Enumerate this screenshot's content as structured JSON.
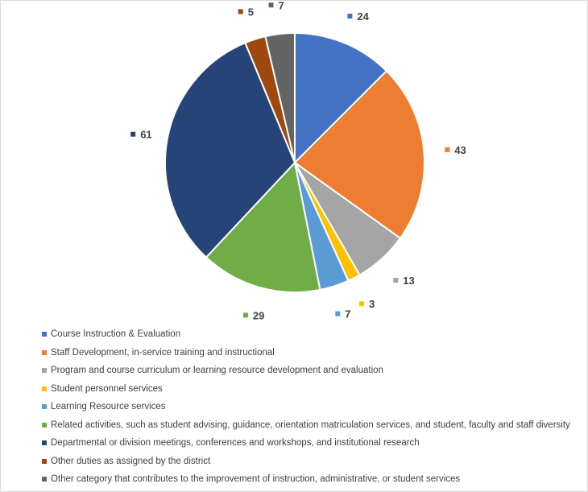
{
  "chart_data": {
    "type": "pie",
    "title": "",
    "start_angle_deg": 0,
    "direction": "clockwise",
    "slices": [
      {
        "label": "Course Instruction & Evaluation",
        "value": 24,
        "color": "#4472c4"
      },
      {
        "label": "Staff Development, in-service training and instructional",
        "value": 43,
        "color": "#ed7d31"
      },
      {
        "label": "Program and course curriculum or learning resource development and evaluation",
        "value": 13,
        "color": "#a5a5a5"
      },
      {
        "label": "Student personnel services",
        "value": 3,
        "color": "#ffc000"
      },
      {
        "label": "Learning Resource services",
        "value": 7,
        "color": "#5b9bd5"
      },
      {
        "label": "Related activities, such as student advising, guidance, orientation matriculation services, and student, faculty and staff diversity",
        "value": 29,
        "color": "#70ad47"
      },
      {
        "label": "Departmental or division meetings, conferences and workshops, and institutional research",
        "value": 61,
        "color": "#264478"
      },
      {
        "label": "Other duties as assigned by the district",
        "value": 5,
        "color": "#9e480e"
      },
      {
        "label": "Other category that contributes to the improvement of instruction, administrative, or student services",
        "value": 7,
        "color": "#636363"
      }
    ],
    "data_labels": "outside-end",
    "legend_position": "bottom"
  }
}
